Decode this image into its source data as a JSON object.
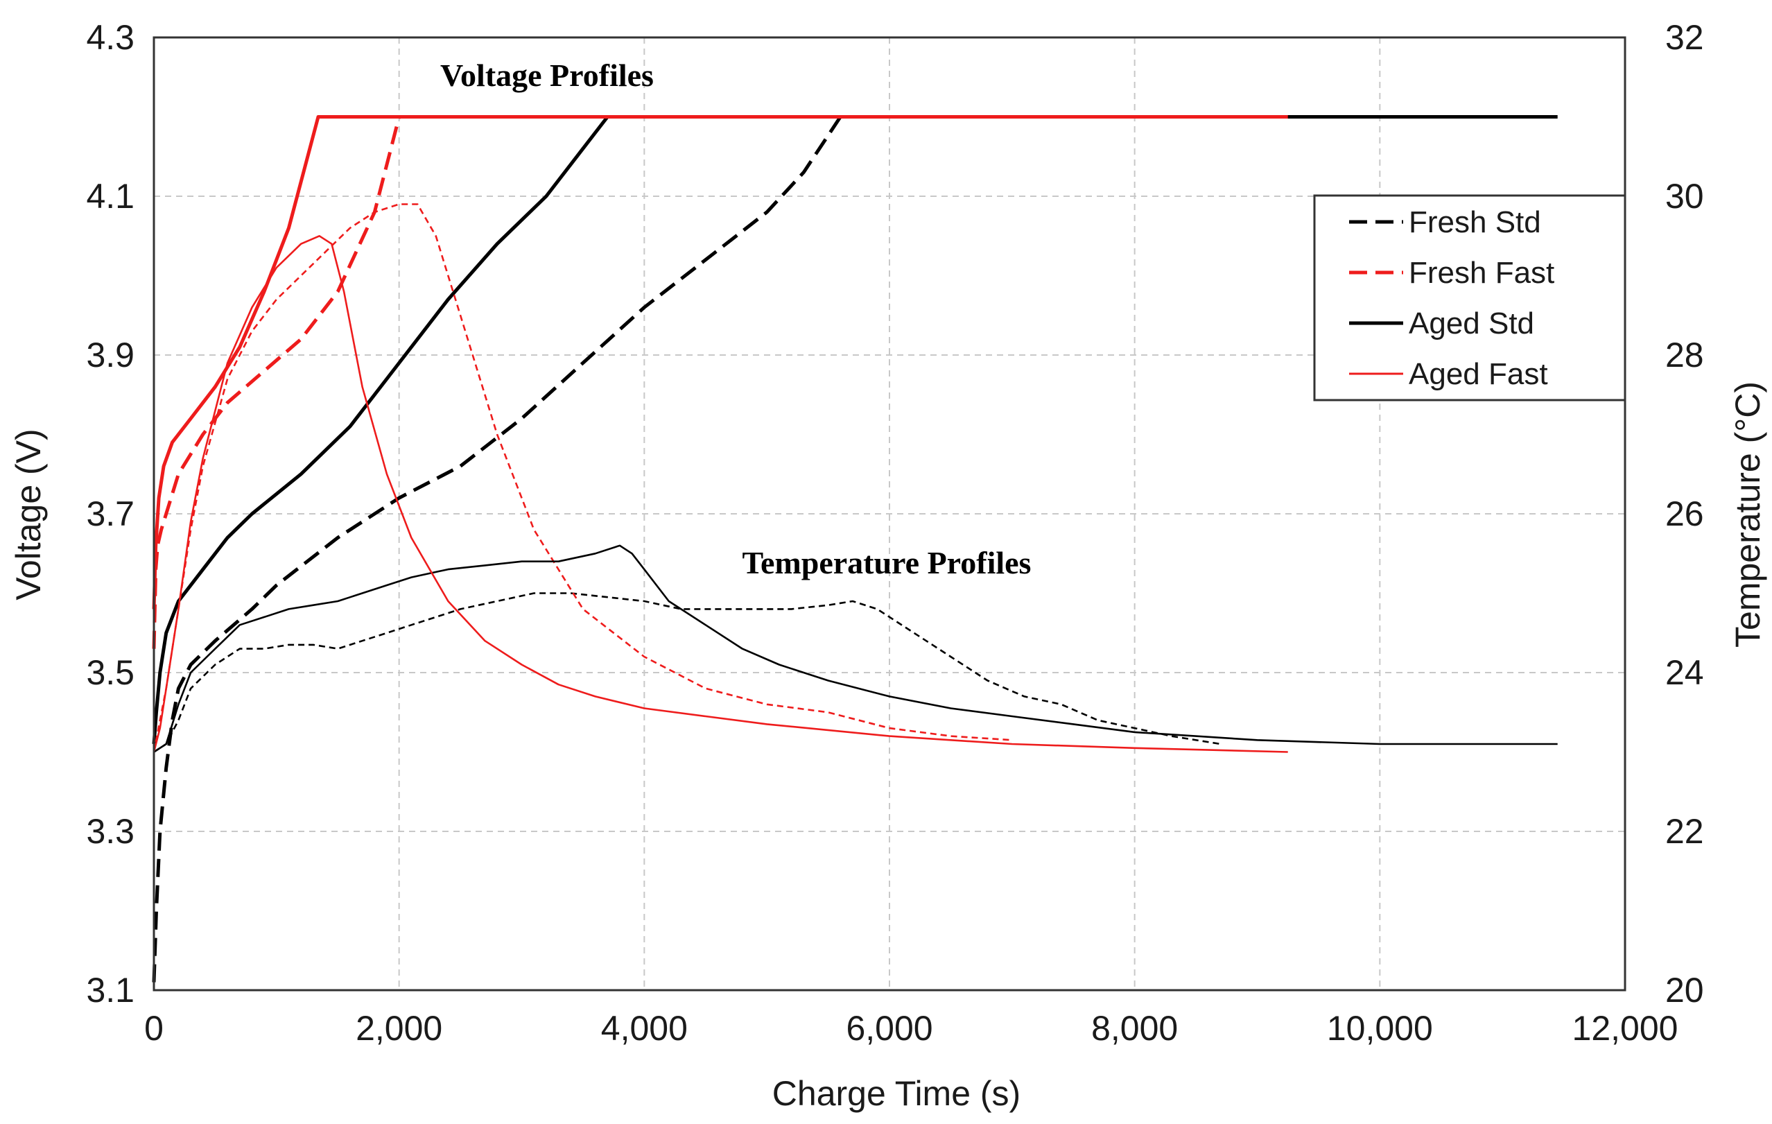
{
  "chart_data": {
    "type": "line",
    "title": "",
    "xlabel": "Charge Time (s)",
    "ylabel": "Voltage (V)",
    "y2label": "Temperature (°C)",
    "xlim": [
      0,
      12000
    ],
    "ylim": [
      3.1,
      4.3
    ],
    "y2lim": [
      20,
      32
    ],
    "xticks": [
      0,
      2000,
      4000,
      6000,
      8000,
      10000,
      12000
    ],
    "xtick_labels": [
      "0",
      "2,000",
      "4,000",
      "6,000",
      "8,000",
      "10,000",
      "12,000"
    ],
    "yticks": [
      3.1,
      3.3,
      3.5,
      3.7,
      3.9,
      4.1,
      4.3
    ],
    "ytick_labels": [
      "3.1",
      "3.3",
      "3.5",
      "3.7",
      "3.9",
      "4.1",
      "4.3"
    ],
    "y2ticks": [
      20,
      22,
      24,
      26,
      28,
      30,
      32
    ],
    "y2tick_labels": [
      "20",
      "22",
      "24",
      "26",
      "28",
      "30",
      "32"
    ],
    "grid": true,
    "legend_position": "upper-right",
    "annotations": [
      {
        "text": "Voltage Profiles",
        "x": 3200,
        "y": 4.23
      },
      {
        "text": "Temperature Profiles",
        "x": 6100,
        "y": 3.615
      }
    ],
    "legend": [
      {
        "label": "Fresh Std",
        "color": "#000000",
        "dash": "dashed"
      },
      {
        "label": "Fresh Fast",
        "color": "#ee1c1c",
        "dash": "dashed"
      },
      {
        "label": "Aged Std",
        "color": "#000000",
        "dash": "solid"
      },
      {
        "label": "Aged Fast",
        "color": "#ee1c1c",
        "dash": "solid"
      }
    ],
    "series": [
      {
        "name": "Fresh Std",
        "kind": "voltage",
        "axis": "left",
        "color": "#000000",
        "dash": "dashed",
        "x": [
          0,
          20,
          50,
          100,
          150,
          200,
          300,
          500,
          800,
          1000,
          1500,
          2000,
          2500,
          3000,
          3500,
          4000,
          4500,
          5000,
          5300,
          5600,
          6000,
          8000,
          10000,
          11450
        ],
        "y": [
          3.11,
          3.2,
          3.3,
          3.38,
          3.44,
          3.48,
          3.51,
          3.54,
          3.58,
          3.61,
          3.67,
          3.72,
          3.76,
          3.82,
          3.89,
          3.96,
          4.02,
          4.08,
          4.13,
          4.2,
          4.2,
          4.2,
          4.2,
          4.2
        ]
      },
      {
        "name": "Fresh Fast",
        "kind": "voltage",
        "axis": "left",
        "color": "#ee1c1c",
        "dash": "dashed",
        "x": [
          0,
          15,
          30,
          60,
          100,
          200,
          400,
          600,
          900,
          1200,
          1500,
          1800,
          2000,
          2500,
          4000,
          6000,
          8000,
          9250
        ],
        "y": [
          3.53,
          3.63,
          3.66,
          3.68,
          3.7,
          3.75,
          3.8,
          3.84,
          3.88,
          3.92,
          3.98,
          4.08,
          4.2,
          4.2,
          4.2,
          4.2,
          4.2,
          4.2
        ]
      },
      {
        "name": "Aged Std",
        "kind": "voltage",
        "axis": "left",
        "color": "#000000",
        "dash": "solid",
        "x": [
          0,
          20,
          50,
          100,
          200,
          400,
          600,
          800,
          1200,
          1600,
          2000,
          2400,
          2800,
          3200,
          3500,
          3700,
          4000,
          6000,
          8000,
          10000,
          11450
        ],
        "y": [
          3.41,
          3.45,
          3.5,
          3.55,
          3.59,
          3.63,
          3.67,
          3.7,
          3.75,
          3.81,
          3.89,
          3.97,
          4.04,
          4.1,
          4.16,
          4.2,
          4.2,
          4.2,
          4.2,
          4.2,
          4.2
        ]
      },
      {
        "name": "Aged Fast",
        "kind": "voltage",
        "axis": "left",
        "color": "#ee1c1c",
        "dash": "solid",
        "x": [
          0,
          15,
          40,
          80,
          150,
          300,
          500,
          700,
          900,
          1100,
          1340,
          2000,
          4000,
          6000,
          8000,
          9250
        ],
        "y": [
          3.58,
          3.66,
          3.72,
          3.76,
          3.79,
          3.82,
          3.86,
          3.91,
          3.98,
          4.06,
          4.2,
          4.2,
          4.2,
          4.2,
          4.2,
          4.2
        ]
      },
      {
        "name": "Fresh Std Temperature",
        "kind": "temperature",
        "axis": "right",
        "color": "#000000",
        "dash": "dashed",
        "x": [
          0,
          100,
          200,
          300,
          500,
          700,
          900,
          1100,
          1300,
          1500,
          1700,
          1900,
          2100,
          2300,
          2500,
          2800,
          3100,
          3400,
          3700,
          4000,
          4300,
          4600,
          4900,
          5200,
          5500,
          5700,
          5900,
          6200,
          6500,
          6800,
          7100,
          7400,
          7700,
          8000,
          8300,
          8700
        ],
        "y": [
          23.0,
          23.1,
          23.4,
          23.8,
          24.1,
          24.3,
          24.3,
          24.35,
          24.35,
          24.3,
          24.4,
          24.5,
          24.6,
          24.7,
          24.8,
          24.9,
          25.0,
          25.0,
          24.95,
          24.9,
          24.8,
          24.8,
          24.8,
          24.8,
          24.85,
          24.9,
          24.8,
          24.5,
          24.2,
          23.9,
          23.7,
          23.6,
          23.4,
          23.3,
          23.2,
          23.1
        ]
      },
      {
        "name": "Fresh Fast Temperature",
        "kind": "temperature",
        "axis": "right",
        "color": "#ee1c1c",
        "dash": "dashed",
        "x": [
          0,
          50,
          100,
          200,
          300,
          400,
          600,
          800,
          1000,
          1200,
          1400,
          1600,
          1800,
          2000,
          2150,
          2300,
          2500,
          2800,
          3100,
          3500,
          4000,
          4500,
          5000,
          5500,
          6000,
          6500,
          7000
        ],
        "y": [
          23.0,
          23.4,
          23.8,
          24.8,
          25.8,
          26.6,
          27.7,
          28.3,
          28.7,
          29.0,
          29.3,
          29.6,
          29.8,
          29.9,
          29.9,
          29.5,
          28.5,
          27.0,
          25.8,
          24.8,
          24.2,
          23.8,
          23.6,
          23.5,
          23.3,
          23.2,
          23.15
        ]
      },
      {
        "name": "Aged Std Temperature",
        "kind": "temperature",
        "axis": "right",
        "color": "#000000",
        "dash": "solid",
        "x": [
          0,
          100,
          200,
          300,
          500,
          700,
          900,
          1100,
          1300,
          1500,
          1700,
          1900,
          2100,
          2400,
          2700,
          3000,
          3300,
          3600,
          3800,
          3900,
          4000,
          4200,
          4500,
          4800,
          5100,
          5500,
          6000,
          6500,
          7000,
          7500,
          8000,
          9000,
          10000,
          11450
        ],
        "y": [
          23.0,
          23.1,
          23.6,
          24.0,
          24.3,
          24.6,
          24.7,
          24.8,
          24.85,
          24.9,
          25.0,
          25.1,
          25.2,
          25.3,
          25.35,
          25.4,
          25.4,
          25.5,
          25.6,
          25.5,
          25.3,
          24.9,
          24.6,
          24.3,
          24.1,
          23.9,
          23.7,
          23.55,
          23.45,
          23.35,
          23.25,
          23.15,
          23.1,
          23.1
        ]
      },
      {
        "name": "Aged Fast Temperature",
        "kind": "temperature",
        "axis": "right",
        "color": "#ee1c1c",
        "dash": "solid",
        "x": [
          0,
          50,
          100,
          200,
          300,
          400,
          600,
          800,
          1000,
          1200,
          1350,
          1450,
          1550,
          1700,
          1900,
          2100,
          2400,
          2700,
          3000,
          3300,
          3600,
          4000,
          4500,
          5000,
          6000,
          7000,
          8000,
          9250
        ],
        "y": [
          23.0,
          23.3,
          23.8,
          24.8,
          25.9,
          26.7,
          27.9,
          28.6,
          29.1,
          29.4,
          29.5,
          29.4,
          28.8,
          27.6,
          26.5,
          25.7,
          24.9,
          24.4,
          24.1,
          23.85,
          23.7,
          23.55,
          23.45,
          23.35,
          23.2,
          23.1,
          23.05,
          23.0
        ]
      }
    ]
  }
}
